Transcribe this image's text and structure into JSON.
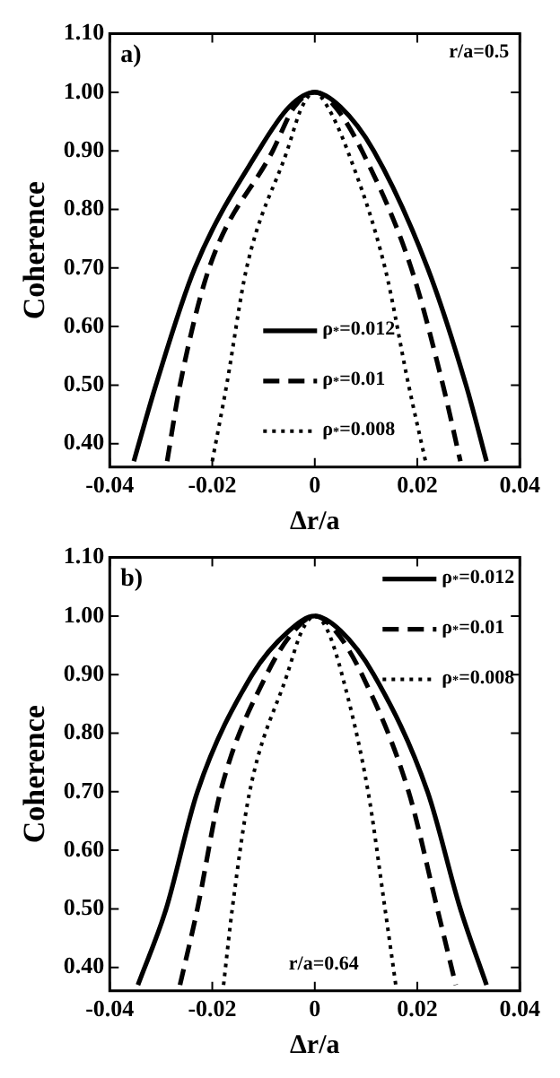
{
  "chart_data": [
    {
      "type": "line",
      "xlabel": "Δr/a",
      "ylabel": "Coherence",
      "xlim": [
        -0.04,
        0.04
      ],
      "ylim": [
        0.36,
        1.1
      ],
      "xticks": [
        -0.04,
        -0.02,
        0,
        0.02,
        0.04
      ],
      "yticks": [
        {
          "value": 0.4,
          "label": "0.40"
        },
        {
          "value": 0.5,
          "label": "0.50"
        },
        {
          "value": 0.6,
          "label": "0.60"
        },
        {
          "value": 0.7,
          "label": "0.70"
        },
        {
          "value": 0.8,
          "label": "0.80"
        },
        {
          "value": 0.9,
          "label": "0.90"
        },
        {
          "value": 1.0,
          "label": "1.00"
        },
        {
          "value": 1.1,
          "label": "1.10"
        }
      ],
      "grid": false,
      "legend": "bottom",
      "marker": "none",
      "annotations": [
        "a)",
        "r/a=0.5"
      ],
      "series": [
        {
          "name": "ρ$_{*}$=0.012",
          "color": "#000000",
          "line_style": "solid",
          "x": [
            -0.0353,
            -0.031,
            -0.0234,
            -0.011,
            -0.005,
            0,
            0.005,
            0.0115,
            0.022,
            0.0295,
            0.0335
          ],
          "values": [
            0.37,
            0.5,
            0.7,
            0.9,
            0.975,
            1.0,
            0.975,
            0.9,
            0.7,
            0.5,
            0.37
          ]
        },
        {
          "name": "ρ$_{*}$=0.01",
          "color": "#000000",
          "line_style": "dashed",
          "x": [
            -0.0288,
            -0.0263,
            -0.0206,
            -0.0082,
            -0.004,
            0,
            0.004,
            0.0092,
            0.0188,
            0.025,
            0.0284
          ],
          "values": [
            0.37,
            0.5,
            0.7,
            0.9,
            0.975,
            1.0,
            0.975,
            0.9,
            0.7,
            0.5,
            0.37
          ]
        },
        {
          "name": "ρ$_{*}$=0.008",
          "color": "#000000",
          "line_style": "dotted",
          "x": [
            -0.02,
            -0.0172,
            -0.0133,
            -0.0054,
            -0.0025,
            0,
            0.0025,
            0.0064,
            0.0137,
            0.0183,
            0.0216
          ],
          "values": [
            0.37,
            0.5,
            0.7,
            0.9,
            0.975,
            1.0,
            0.975,
            0.9,
            0.7,
            0.5,
            0.37
          ]
        }
      ]
    },
    {
      "type": "line",
      "xlabel": "Δr/a",
      "ylabel": "Coherence",
      "xlim": [
        -0.04,
        0.04
      ],
      "ylim": [
        0.36,
        1.1
      ],
      "xticks": [
        -0.04,
        -0.02,
        0,
        0.02,
        0.04
      ],
      "yticks": [
        {
          "value": 0.4,
          "label": "0.40"
        },
        {
          "value": 0.5,
          "label": "0.50"
        },
        {
          "value": 0.6,
          "label": "0.60"
        },
        {
          "value": 0.7,
          "label": "0.70"
        },
        {
          "value": 0.8,
          "label": "0.80"
        },
        {
          "value": 0.9,
          "label": "0.90"
        },
        {
          "value": 1.0,
          "label": "1.00"
        },
        {
          "value": 1.1,
          "label": "1.10"
        }
      ],
      "grid": false,
      "legend": "top right",
      "marker": "none",
      "annotations": [
        "b)",
        "r/a=0.64"
      ],
      "series": [
        {
          "name": "ρ$_{*}$=0.012",
          "color": "#000000",
          "line_style": "solid",
          "x": [
            -0.0345,
            -0.029,
            -0.0229,
            -0.0122,
            -0.005,
            0,
            0.005,
            0.0115,
            0.022,
            0.0284,
            0.0335
          ],
          "values": [
            0.37,
            0.5,
            0.7,
            0.9,
            0.975,
            1.0,
            0.975,
            0.9,
            0.7,
            0.5,
            0.37
          ]
        },
        {
          "name": "ρ$_{*}$=0.01",
          "color": "#000000",
          "line_style": "dashed",
          "x": [
            -0.0263,
            -0.0229,
            -0.0184,
            -0.0094,
            -0.004,
            0,
            0.004,
            0.0092,
            0.0183,
            0.0239,
            0.0275
          ],
          "values": [
            0.37,
            0.5,
            0.7,
            0.9,
            0.975,
            1.0,
            0.975,
            0.9,
            0.7,
            0.5,
            0.37
          ]
        },
        {
          "name": "ρ$_{*}$=0.008",
          "color": "#000000",
          "line_style": "dotted",
          "x": [
            -0.0178,
            -0.0161,
            -0.0127,
            -0.0054,
            -0.0025,
            0,
            0.0025,
            0.0053,
            0.0104,
            0.0137,
            0.0158
          ],
          "values": [
            0.37,
            0.5,
            0.7,
            0.9,
            0.975,
            1.0,
            0.975,
            0.9,
            0.7,
            0.5,
            0.37
          ]
        }
      ]
    }
  ]
}
